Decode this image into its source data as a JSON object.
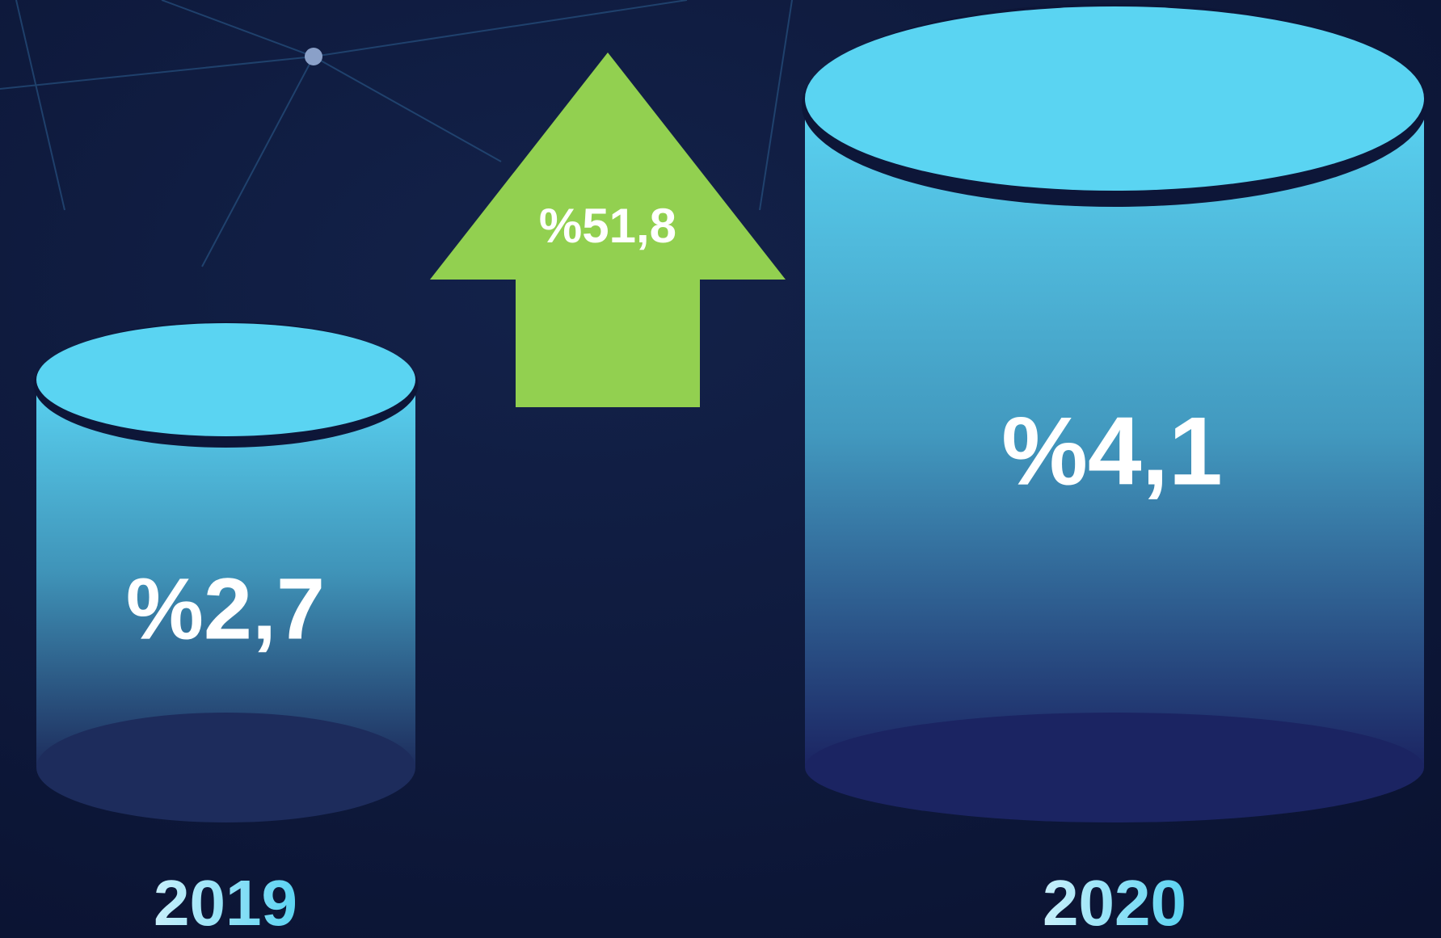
{
  "items": [
    {
      "year": "2019",
      "label": "%2,7"
    },
    {
      "year": "2020",
      "label": "%4,1"
    }
  ],
  "change": {
    "label": "%51,8"
  }
}
